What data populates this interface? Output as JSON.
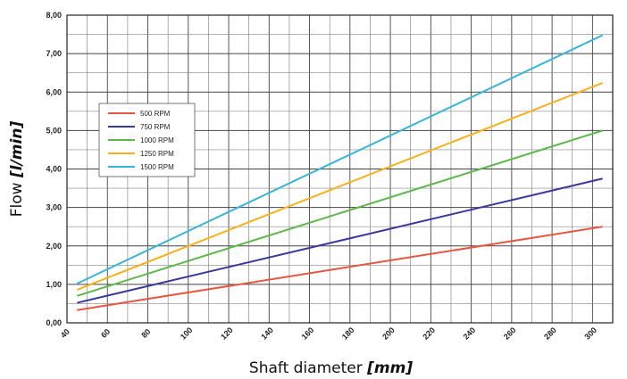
{
  "chart_data": {
    "type": "line",
    "xlabel": "Shaft diameter",
    "xlabel_unit": "[mm]",
    "ylabel": "Flow",
    "ylabel_unit": "[l/min]",
    "xlim": [
      40,
      310
    ],
    "ylim": [
      0,
      8
    ],
    "x_ticks": [
      "40",
      "60",
      "80",
      "100",
      "120",
      "140",
      "160",
      "180",
      "200",
      "220",
      "240",
      "260",
      "280",
      "300"
    ],
    "y_ticks": [
      "0,00",
      "1,00",
      "2,00",
      "3,00",
      "4,00",
      "5,00",
      "6,00",
      "7,00",
      "8,00"
    ],
    "grid": true,
    "legend_position": "upper-left",
    "series": [
      {
        "name": "500 RPM",
        "color": "#e8553f",
        "x": [
          45,
          305
        ],
        "y": [
          0.33,
          2.5
        ]
      },
      {
        "name": "750 RPM",
        "color": "#3a3a9c",
        "x": [
          45,
          305
        ],
        "y": [
          0.52,
          3.75
        ]
      },
      {
        "name": "1000 RPM",
        "color": "#5cb84a",
        "x": [
          45,
          305
        ],
        "y": [
          0.7,
          5.0
        ]
      },
      {
        "name": "1250 RPM",
        "color": "#f5b21c",
        "x": [
          45,
          305
        ],
        "y": [
          0.86,
          6.24
        ]
      },
      {
        "name": "1500 RPM",
        "color": "#3ab5d6",
        "x": [
          45,
          305
        ],
        "y": [
          1.02,
          7.48
        ]
      }
    ]
  }
}
